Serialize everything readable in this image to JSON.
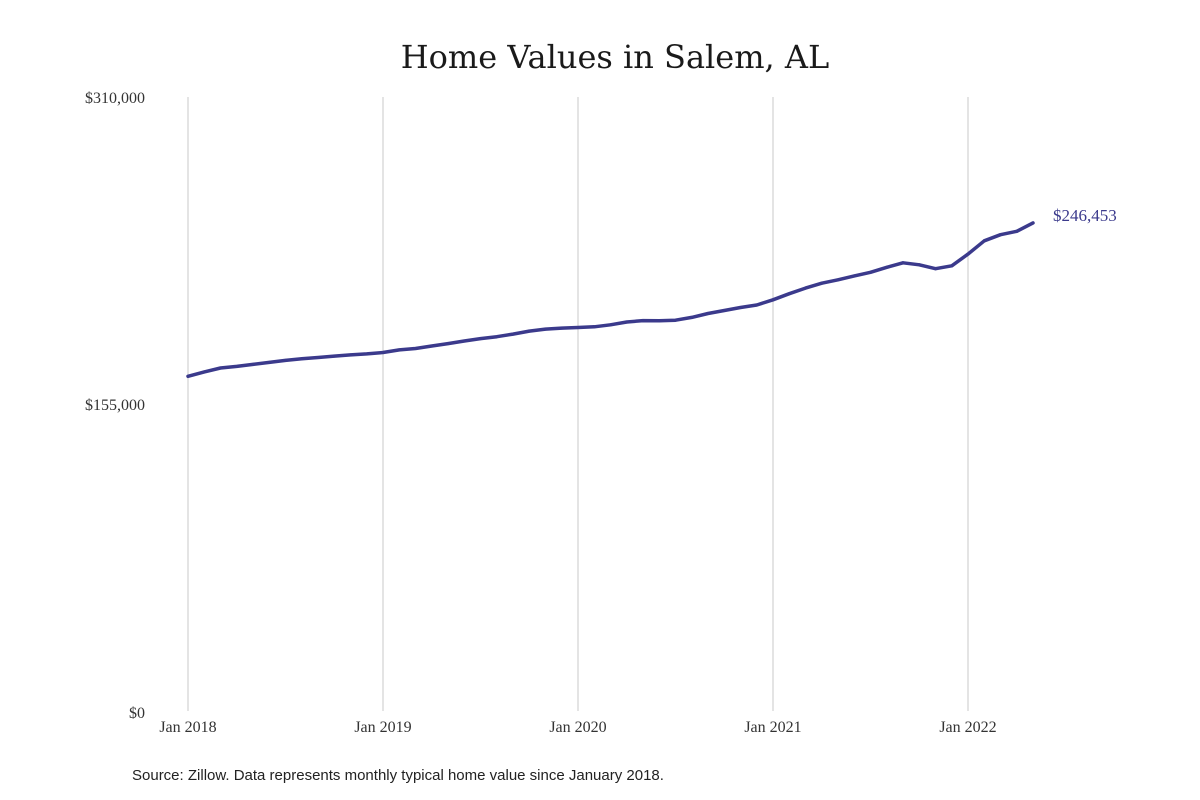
{
  "chart_data": {
    "type": "line",
    "title": "Home Values in Salem, AL",
    "source": "Source: Zillow. Data represents monthly typical home value since January 2018.",
    "y_ticks": [
      {
        "value": 310000,
        "label": "$310,000"
      },
      {
        "value": 155000,
        "label": "$155,000"
      },
      {
        "value": 0,
        "label": "$0"
      }
    ],
    "x_ticks": [
      {
        "value": "2018-01",
        "label": "Jan 2018"
      },
      {
        "value": "2019-01",
        "label": "Jan 2019"
      },
      {
        "value": "2020-01",
        "label": "Jan 2020"
      },
      {
        "value": "2021-01",
        "label": "Jan 2021"
      },
      {
        "value": "2022-01",
        "label": "Jan 2022"
      }
    ],
    "ylim": [
      0,
      310000
    ],
    "xlim": [
      "2018-01",
      "2022-06"
    ],
    "grid": "vertical",
    "line_color": "#3b3a8c",
    "end_label": "$246,453",
    "series": [
      {
        "x": [
          "2018-01",
          "2018-02",
          "2018-03",
          "2018-04",
          "2018-05",
          "2018-06",
          "2018-07",
          "2018-08",
          "2018-09",
          "2018-10",
          "2018-11",
          "2018-12",
          "2019-01",
          "2019-02",
          "2019-03",
          "2019-04",
          "2019-05",
          "2019-06",
          "2019-07",
          "2019-08",
          "2019-09",
          "2019-10",
          "2019-11",
          "2019-12",
          "2020-01",
          "2020-02",
          "2020-03",
          "2020-04",
          "2020-05",
          "2020-06",
          "2020-07",
          "2020-08",
          "2020-09",
          "2020-10",
          "2020-11",
          "2020-12",
          "2021-01",
          "2021-02",
          "2021-03",
          "2021-04",
          "2021-05",
          "2021-06",
          "2021-07",
          "2021-08",
          "2021-09",
          "2021-10",
          "2021-11",
          "2021-12",
          "2022-01",
          "2022-02",
          "2022-03",
          "2022-04",
          "2022-05"
        ],
        "values": [
          169000,
          171200,
          173200,
          174000,
          175000,
          176000,
          177000,
          177800,
          178500,
          179200,
          179800,
          180300,
          181000,
          182300,
          183000,
          184300,
          185500,
          186800,
          188000,
          189000,
          190300,
          191800,
          192800,
          193300,
          193600,
          194000,
          195000,
          196400,
          197100,
          197000,
          197300,
          198700,
          200700,
          202200,
          203700,
          205000,
          207600,
          210700,
          213500,
          216000,
          217700,
          219700,
          221500,
          224000,
          226300,
          225300,
          223300,
          224800,
          230700,
          237400,
          240500,
          242200,
          246453
        ]
      }
    ]
  }
}
